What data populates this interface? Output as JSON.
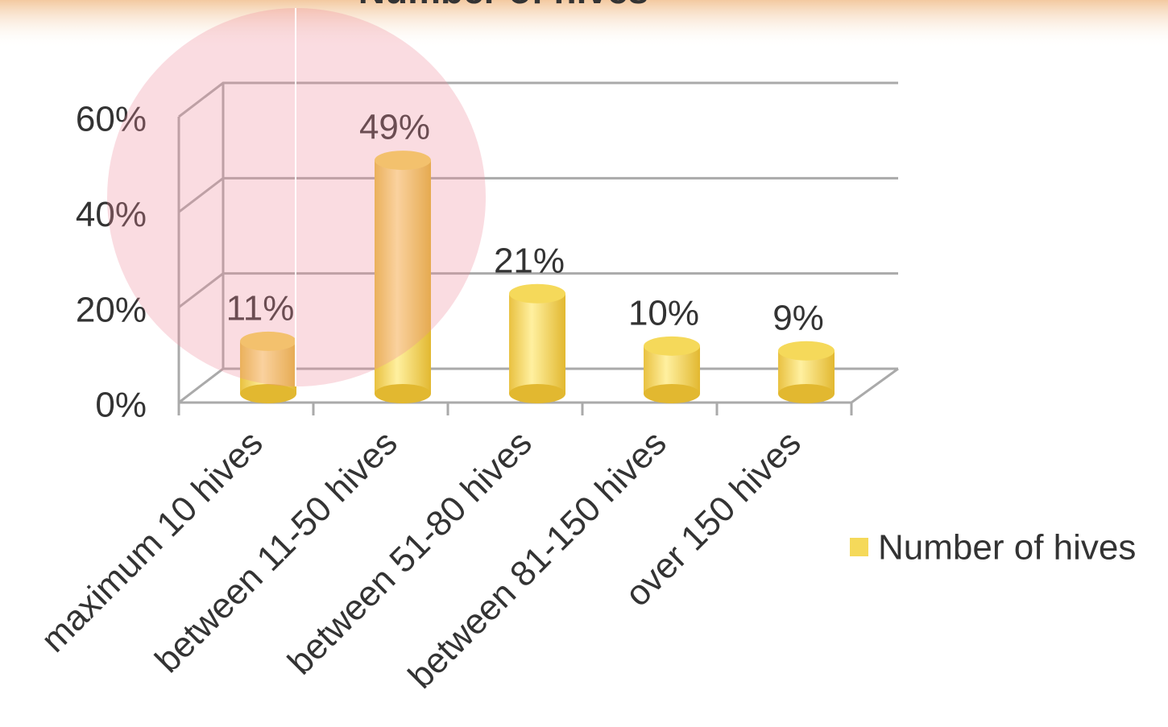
{
  "chart_data": {
    "type": "bar3d",
    "title": "Number of hives",
    "categories": [
      "maximum 10 hives",
      "between 11-50 hives",
      "between 51-80 hives",
      "between 81-150 hives",
      "over 150 hives"
    ],
    "series": [
      {
        "name": "Number of hives",
        "color": "#f5d95a",
        "values": [
          11,
          49,
          21,
          10,
          9
        ],
        "value_labels": [
          "11%",
          "49%",
          "21%",
          "10%",
          "9%"
        ]
      }
    ],
    "ylim": [
      0,
      60
    ],
    "yticks": [
      {
        "value": 0,
        "label": "0%"
      },
      {
        "value": 20,
        "label": "20%"
      },
      {
        "value": 40,
        "label": "40%"
      },
      {
        "value": 60,
        "label": "60%"
      }
    ],
    "grid": true,
    "legend": "right"
  }
}
